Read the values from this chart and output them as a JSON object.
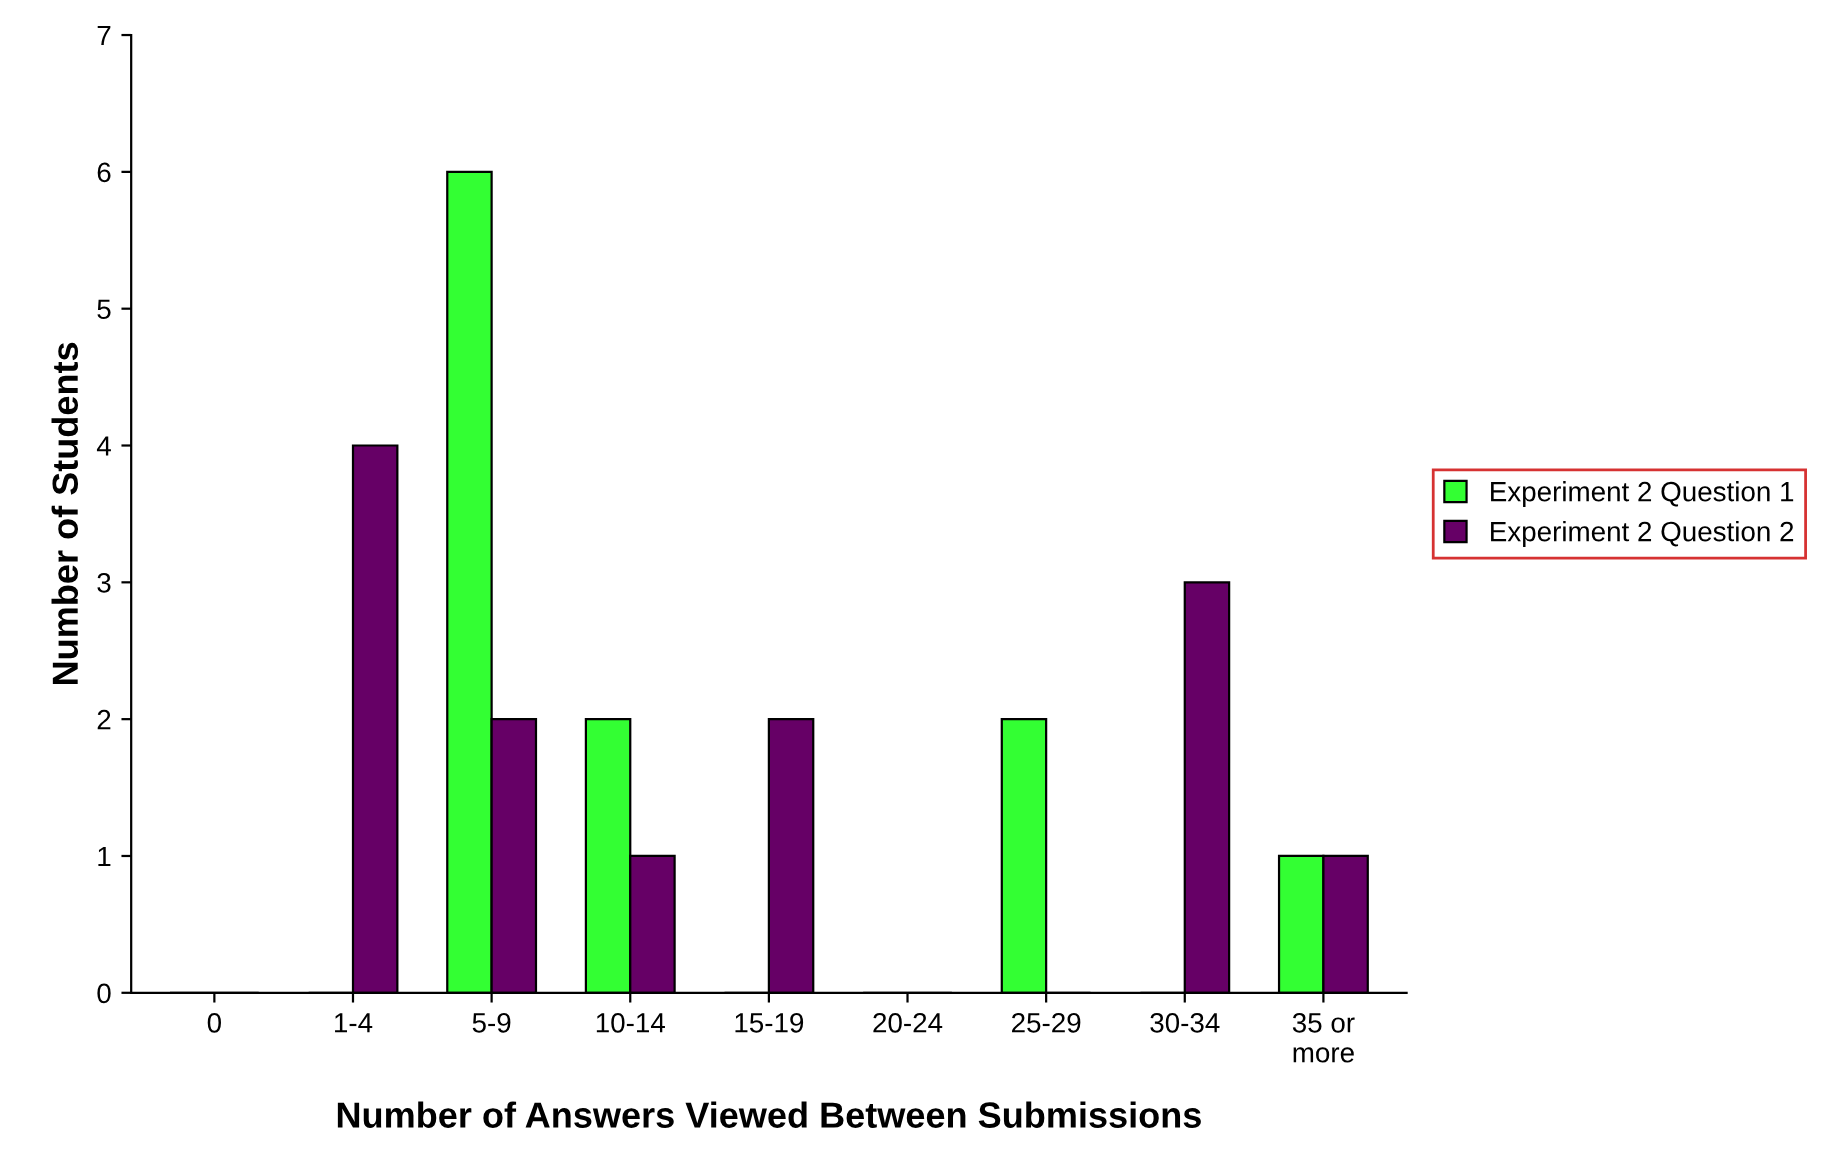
{
  "chart_data": {
    "type": "bar",
    "xlabel": "Number of Answers Viewed Between Submissions",
    "ylabel": "Number of Students",
    "categories": [
      "0",
      "1-4",
      "5-9",
      "10-14",
      "15-19",
      "20-24",
      "25-29",
      "30-34",
      "35 or\nmore"
    ],
    "series": [
      {
        "name": "Experiment 2 Question 1",
        "color": "#33ff33",
        "values": [
          0,
          0,
          6,
          2,
          0,
          0,
          2,
          0,
          1
        ]
      },
      {
        "name": "Experiment 2 Question 2",
        "color": "#660066",
        "values": [
          0,
          4,
          2,
          1,
          2,
          0,
          0,
          3,
          1
        ]
      }
    ],
    "ylim": [
      0,
      7
    ],
    "yticks": [
      0,
      1,
      2,
      3,
      4,
      5,
      6,
      7
    ],
    "grid": false,
    "legend": "right"
  }
}
